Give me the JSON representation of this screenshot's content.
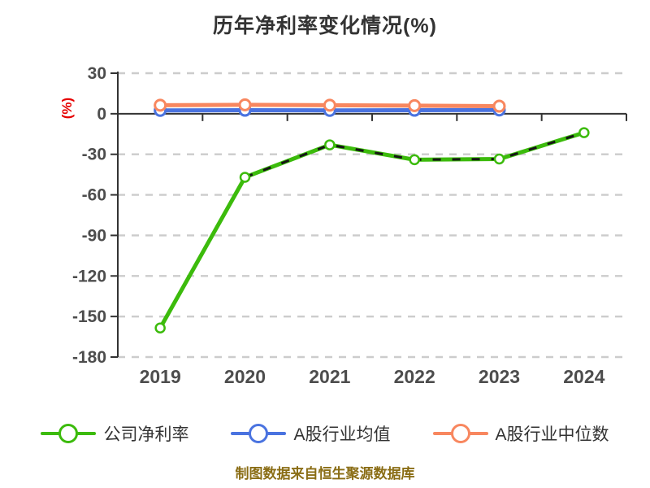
{
  "chart_data": {
    "type": "line",
    "title": "历年净利率变化情况(%)",
    "ylabel": "(%)",
    "ylabel_color": "#e60000",
    "x_categories": [
      "2019",
      "2020",
      "2021",
      "2022",
      "2023",
      "2024"
    ],
    "y_ticks": [
      30,
      0,
      -30,
      -60,
      -90,
      -120,
      -150,
      -180
    ],
    "ylim": [
      -180,
      30
    ],
    "grid": "dashed-horizontal",
    "grid_color": "#cccccc",
    "axis_color": "#333333",
    "tick_label_color": "#4d4d4d",
    "x_axis_on_zero": true,
    "legend_position": "bottom",
    "series": [
      {
        "name": "公司净利率",
        "color": "#3cbb0c",
        "marker": "hollow-circle",
        "dash_overlay": true,
        "x": [
          "2019",
          "2020",
          "2021",
          "2022",
          "2023",
          "2024"
        ],
        "values": [
          -158.5,
          -47,
          -23,
          -34,
          -33.5,
          -14
        ]
      },
      {
        "name": "A股行业均值",
        "color": "#4a73e0",
        "marker": "hollow-circle",
        "dash_overlay": false,
        "x": [
          "2019",
          "2020",
          "2021",
          "2022",
          "2023"
        ],
        "values": [
          2.5,
          2.6,
          2.5,
          2.6,
          2.8
        ]
      },
      {
        "name": "A股行业中位数",
        "color": "#f8875f",
        "marker": "hollow-circle",
        "dash_overlay": false,
        "x": [
          "2019",
          "2020",
          "2021",
          "2022",
          "2023"
        ],
        "values": [
          6.3,
          6.6,
          6.3,
          6.0,
          5.6
        ]
      }
    ],
    "caption": "制图数据来自恒生聚源数据库",
    "caption_color": "#8a6d15"
  }
}
